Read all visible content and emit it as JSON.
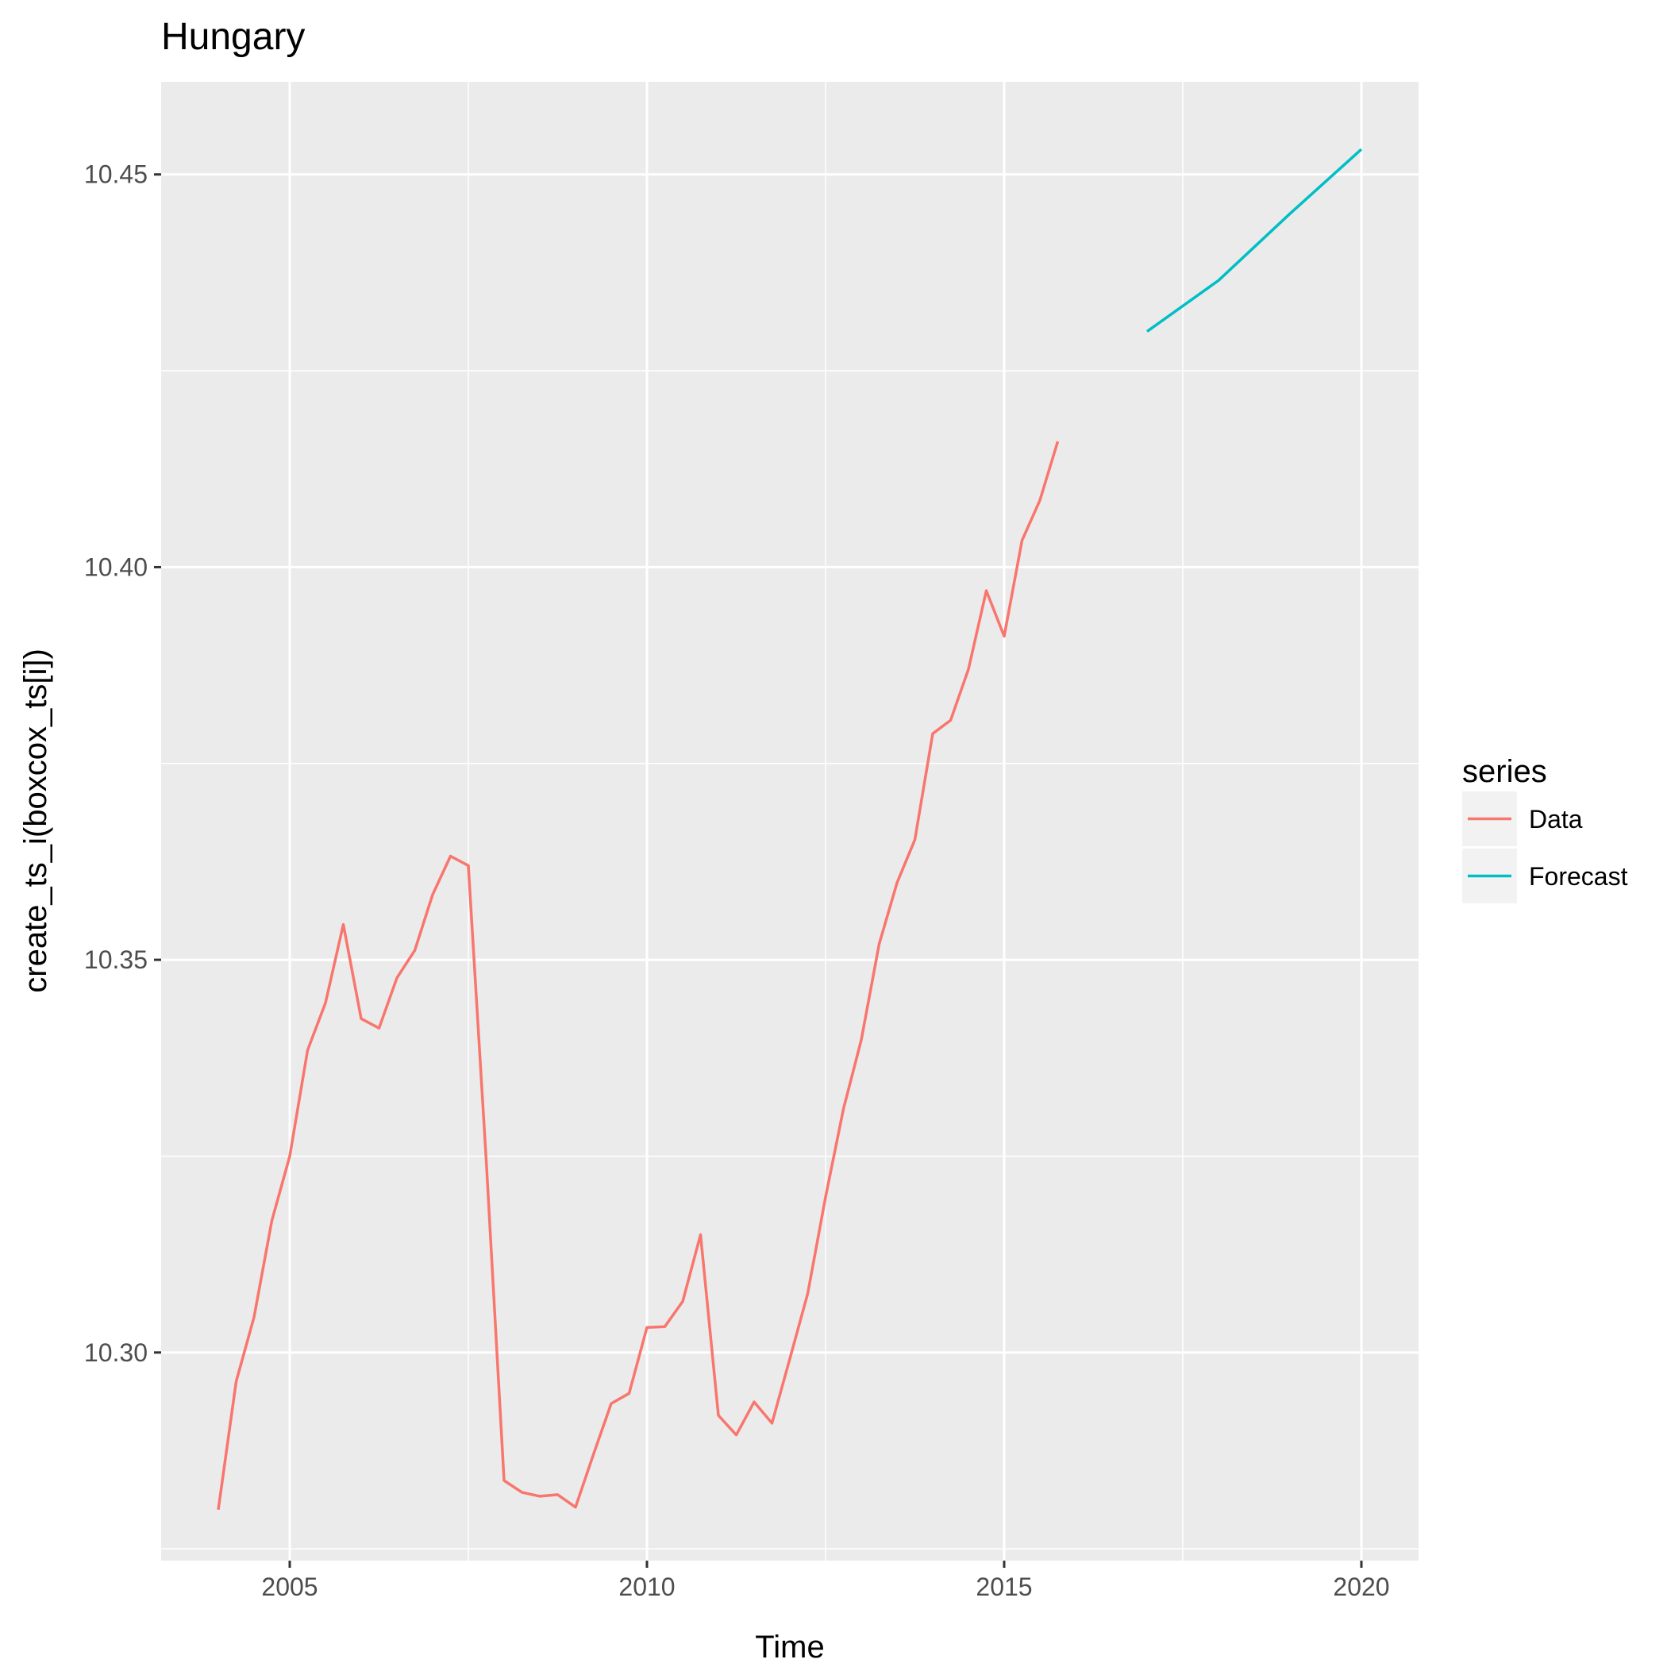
{
  "chart_data": {
    "type": "line",
    "title": "Hungary",
    "xlabel": "Time",
    "ylabel": "create_ts_i(boxcox_ts[i])",
    "xlim": [
      2003.2,
      2020.8
    ],
    "ylim": [
      10.2735,
      10.4618
    ],
    "x_ticks": [
      2005,
      2010,
      2015,
      2020
    ],
    "x_tick_labels": [
      "2005",
      "2010",
      "2015",
      "2020"
    ],
    "y_ticks": [
      10.3,
      10.35,
      10.4,
      10.45
    ],
    "y_tick_labels": [
      "10.30",
      "10.35",
      "10.40",
      "10.45"
    ],
    "grid": true,
    "legend": {
      "title": "series",
      "position": "right"
    },
    "series": [
      {
        "name": "Data",
        "color": "#F8766D",
        "x": [
          2004.0,
          2004.25,
          2004.5,
          2004.75,
          2005.0,
          2005.25,
          2005.5,
          2005.75,
          2006.0,
          2006.25,
          2006.5,
          2006.75,
          2007.0,
          2007.25,
          2007.5,
          2007.75,
          2008.0,
          2008.25,
          2008.5,
          2008.75,
          2009.0,
          2009.25,
          2009.5,
          2009.75,
          2010.0,
          2010.25,
          2010.5,
          2010.75,
          2011.0,
          2011.25,
          2011.5,
          2011.75,
          2012.0,
          2012.25,
          2012.5,
          2012.75,
          2013.0,
          2013.25,
          2013.5,
          2013.75,
          2014.0,
          2014.25,
          2014.5,
          2014.75,
          2015.0,
          2015.25,
          2015.5,
          2015.75
        ],
        "values": [
          10.28,
          10.2963,
          10.3045,
          10.3168,
          10.325,
          10.3385,
          10.3445,
          10.3545,
          10.3425,
          10.3413,
          10.3477,
          10.3512,
          10.3583,
          10.3632,
          10.362,
          10.3245,
          10.2837,
          10.2822,
          10.2817,
          10.2819,
          10.2803,
          10.287,
          10.2935,
          10.2948,
          10.3032,
          10.3033,
          10.3065,
          10.315,
          10.292,
          10.2895,
          10.2937,
          10.291,
          10.2992,
          10.3075,
          10.3198,
          10.331,
          10.3398,
          10.352,
          10.3598,
          10.3653,
          10.3788,
          10.3805,
          10.387,
          10.397,
          10.3912,
          10.4034,
          10.4085,
          10.416
        ]
      },
      {
        "name": "Forecast",
        "color": "#00BFC4",
        "x": [
          2017.0,
          2018.0,
          2019.0,
          2020.0
        ],
        "values": [
          10.43,
          10.4365,
          10.445,
          10.4532
        ]
      }
    ]
  }
}
